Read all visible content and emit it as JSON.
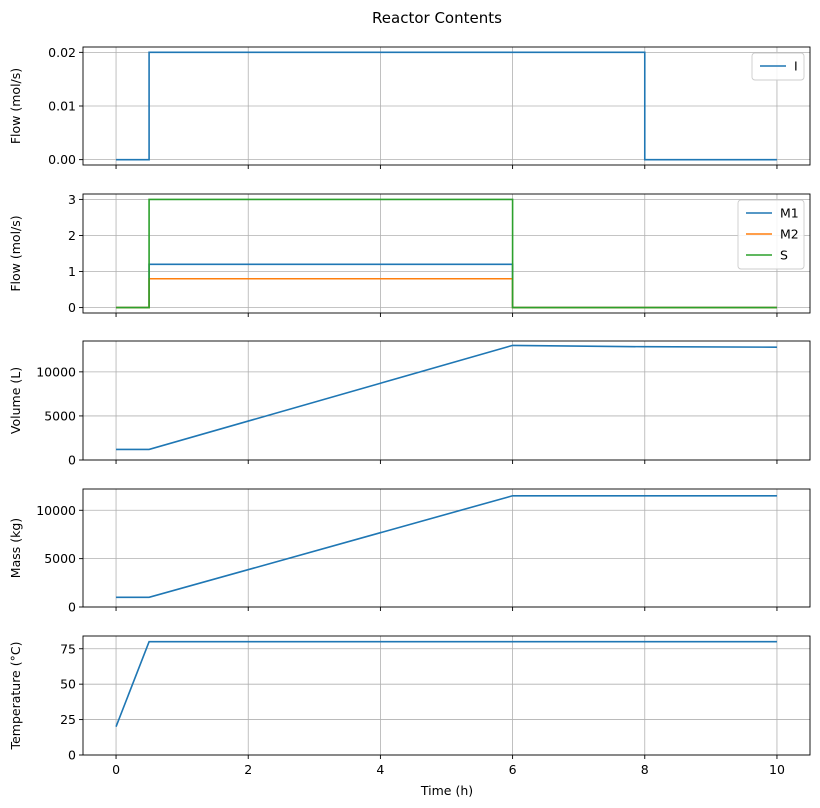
{
  "figure": {
    "title": "Reactor Contents",
    "xlabel": "Time (h)"
  },
  "chart_data": [
    {
      "type": "line",
      "ylabel": "Flow (mol/s)",
      "xlim": [
        -0.5,
        10.5
      ],
      "ylim": [
        -0.001,
        0.021
      ],
      "xticks": [
        0,
        2,
        4,
        6,
        8,
        10
      ],
      "yticks": [
        0.0,
        0.01,
        0.02
      ],
      "ytick_labels": [
        "0.00",
        "0.01",
        "0.02"
      ],
      "grid": true,
      "legend": "top-right",
      "series": [
        {
          "name": "I",
          "color": "#1f77b4",
          "x": [
            0,
            0.5,
            0.5,
            8,
            8,
            10
          ],
          "y": [
            0,
            0,
            0.02,
            0.02,
            0,
            0
          ]
        }
      ]
    },
    {
      "type": "line",
      "ylabel": "Flow (mol/s)",
      "xlim": [
        -0.5,
        10.5
      ],
      "ylim": [
        -0.15,
        3.15
      ],
      "xticks": [
        0,
        2,
        4,
        6,
        8,
        10
      ],
      "yticks": [
        0,
        1,
        2,
        3
      ],
      "ytick_labels": [
        "0",
        "1",
        "2",
        "3"
      ],
      "grid": true,
      "legend": "top-right",
      "series": [
        {
          "name": "M1",
          "color": "#1f77b4",
          "x": [
            0,
            0.5,
            0.5,
            6,
            6,
            10
          ],
          "y": [
            0,
            0,
            1.2,
            1.2,
            0,
            0
          ]
        },
        {
          "name": "M2",
          "color": "#ff7f0e",
          "x": [
            0,
            0.5,
            0.5,
            6,
            6,
            10
          ],
          "y": [
            0,
            0,
            0.8,
            0.8,
            0,
            0
          ]
        },
        {
          "name": "S",
          "color": "#2ca02c",
          "x": [
            0,
            0.5,
            0.5,
            6,
            6,
            10
          ],
          "y": [
            0,
            0,
            3,
            3,
            0,
            0
          ]
        }
      ]
    },
    {
      "type": "line",
      "ylabel": "Volume (L)",
      "xlim": [
        -0.5,
        10.5
      ],
      "ylim": [
        0,
        13500
      ],
      "xticks": [
        0,
        2,
        4,
        6,
        8,
        10
      ],
      "yticks": [
        0,
        5000,
        10000
      ],
      "ytick_labels": [
        "0",
        "5000",
        "10000"
      ],
      "grid": true,
      "series": [
        {
          "name": "",
          "color": "#1f77b4",
          "x": [
            0,
            0.5,
            6,
            8,
            10
          ],
          "y": [
            1200,
            1200,
            13000,
            12850,
            12800
          ]
        }
      ]
    },
    {
      "type": "line",
      "ylabel": "Mass (kg)",
      "xlim": [
        -0.5,
        10.5
      ],
      "ylim": [
        0,
        12200
      ],
      "xticks": [
        0,
        2,
        4,
        6,
        8,
        10
      ],
      "yticks": [
        0,
        5000,
        10000
      ],
      "ytick_labels": [
        "0",
        "5000",
        "10000"
      ],
      "grid": true,
      "series": [
        {
          "name": "",
          "color": "#1f77b4",
          "x": [
            0,
            0.5,
            6,
            10
          ],
          "y": [
            1000,
            1000,
            11500,
            11500
          ]
        }
      ]
    },
    {
      "type": "line",
      "ylabel": "Temperature (°C)",
      "xlim": [
        -0.5,
        10.5
      ],
      "ylim": [
        0,
        84
      ],
      "xticks": [
        0,
        2,
        4,
        6,
        8,
        10
      ],
      "yticks": [
        0,
        25,
        50,
        75
      ],
      "ytick_labels": [
        "0",
        "25",
        "50",
        "75"
      ],
      "xtick_labels": [
        "0",
        "2",
        "4",
        "6",
        "8",
        "10"
      ],
      "grid": true,
      "series": [
        {
          "name": "",
          "color": "#1f77b4",
          "x": [
            0,
            0.5,
            10
          ],
          "y": [
            20,
            80,
            80
          ]
        }
      ]
    }
  ]
}
